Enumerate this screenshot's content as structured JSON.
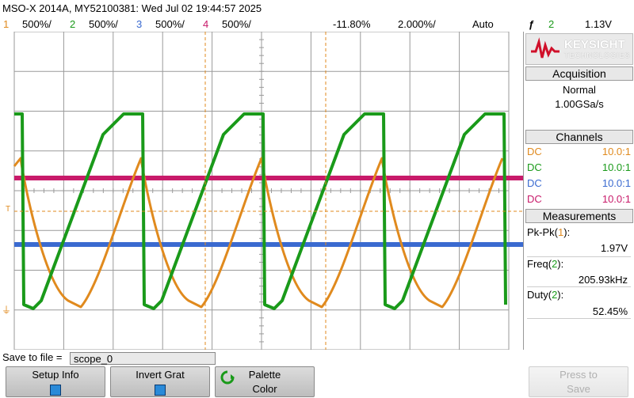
{
  "title": "MSO-X 2014A, MY52100381: Wed Jul 02 19:44:57 2025",
  "channels_bar": {
    "ch1_num": "1",
    "ch1_scale": "500%/",
    "ch2_num": "2",
    "ch2_scale": "500%/",
    "ch3_num": "3",
    "ch3_scale": "500%/",
    "ch4_num": "4",
    "ch4_scale": "500%/",
    "delay": "-11.80%",
    "timebase": "2.000%/",
    "trigger_mode": "Auto",
    "trig_icon": "ƒ",
    "trig_source": "2",
    "trig_level": "1.13V"
  },
  "colors": {
    "ch1": "#e08a1e",
    "ch2": "#1a9a1a",
    "ch3": "#3a6ad0",
    "ch4": "#c81a6a",
    "grid": "#9a9a9a"
  },
  "logo": {
    "brand": "KEYSIGHT",
    "sub": "TECHNOLOGIES"
  },
  "acquisition": {
    "header": "Acquisition",
    "mode": "Normal",
    "rate": "1.00GSa/s"
  },
  "channels_panel": {
    "header": "Channels",
    "rows": [
      {
        "coupling": "DC",
        "probe": "10.0:1"
      },
      {
        "coupling": "DC",
        "probe": "10.0:1"
      },
      {
        "coupling": "DC",
        "probe": "10.0:1"
      },
      {
        "coupling": "DC",
        "probe": "10.0:1"
      }
    ]
  },
  "measurements": {
    "header": "Measurements",
    "items": [
      {
        "label_pre": "Pk-Pk(",
        "ch": "1",
        "label_post": "):",
        "value": "1.97V"
      },
      {
        "label_pre": "Freq(",
        "ch": "2",
        "label_post": "):",
        "value": "205.93kHz"
      },
      {
        "label_pre": "Duty(",
        "ch": "2",
        "label_post": "):",
        "value": "52.45%"
      }
    ]
  },
  "save": {
    "label": "Save to file =",
    "value": "scope_0"
  },
  "softkeys": {
    "setup_info": "Setup Info",
    "invert_grat": "Invert Grat",
    "palette_l1": "Palette",
    "palette_l2": "Color",
    "press_l1": "Press to",
    "press_l2": "Save"
  },
  "markers": {
    "trigger": "T",
    "ground": "⏚"
  }
}
